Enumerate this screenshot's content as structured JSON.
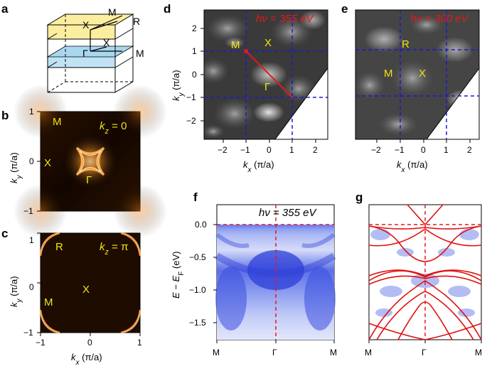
{
  "panels": {
    "a": {
      "label": "a",
      "points": {
        "M": "M",
        "R": "R",
        "X_top": "X",
        "X_mid": "X",
        "Gamma": "Γ",
        "M_mid": "M"
      }
    },
    "b": {
      "label": "b",
      "kz": "k",
      "kz_sub": "z",
      "kz_val": " = 0",
      "points": {
        "M": "M",
        "X": "X",
        "Gamma": "Γ"
      },
      "ylabel": "k",
      "ylabel_sub": "y",
      "ylabel_unit": " (π/a)",
      "yticks": [
        "1",
        "0",
        "−1"
      ]
    },
    "c": {
      "label": "c",
      "kz": "k",
      "kz_sub": "z",
      "kz_val": " = π",
      "points": {
        "R": "R",
        "X": "X",
        "M": "M"
      },
      "ylabel": "k",
      "ylabel_sub": "y",
      "ylabel_unit": " (π/a)",
      "yticks": [
        "1",
        "0",
        "−1"
      ],
      "xticks": [
        "−1",
        "0",
        "1"
      ],
      "xlabel": "k",
      "xlabel_sub": "x",
      "xlabel_unit": " (π/a)"
    },
    "d": {
      "label": "d",
      "energy": "hν = 355 eV",
      "points": {
        "M": "M",
        "X": "X",
        "Gamma": "Γ"
      },
      "ylabel": "k",
      "ylabel_sub": "y",
      "ylabel_unit": " (π/a)",
      "yticks": [
        "2",
        "1",
        "0",
        "−1",
        "−2"
      ],
      "xticks": [
        "−2",
        "−1",
        "0",
        "1",
        "2"
      ],
      "xlabel": "k",
      "xlabel_sub": "x",
      "xlabel_unit": " (π/a)"
    },
    "e": {
      "label": "e",
      "energy": "hν = 300 eV",
      "points": {
        "R": "R",
        "M": "M",
        "X": "X"
      },
      "xticks": [
        "−2",
        "−1",
        "0",
        "1",
        "2"
      ],
      "xlabel": "k",
      "xlabel_sub": "x",
      "xlabel_unit": " (π/a)"
    },
    "f": {
      "label": "f",
      "energy": "hν = 355 eV",
      "ylabel": "E − E",
      "ylabel_sub": "F",
      "ylabel_unit": " (eV)",
      "yticks": [
        "0.0",
        "−0.5",
        "−1.0",
        "−1.5"
      ],
      "xticks": [
        "M",
        "Γ",
        "M"
      ]
    },
    "g": {
      "label": "g",
      "xticks": [
        "M",
        "Γ",
        "M"
      ]
    }
  },
  "colors": {
    "yellow": "#f2e60a",
    "red": "#e8181a",
    "blue_dash": "#1a1ad0",
    "arpes_blue": "#3a4fe0",
    "band_red": "#e01010"
  }
}
